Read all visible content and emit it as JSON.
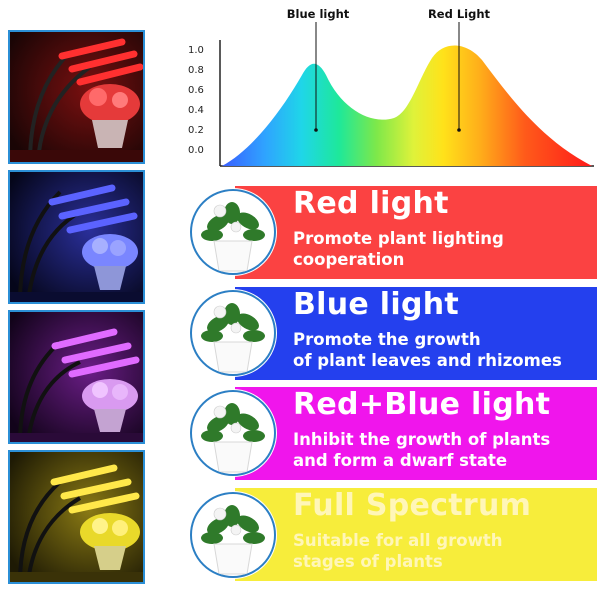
{
  "chart": {
    "y_ticks": [
      "1.0",
      "0.8",
      "0.6",
      "0.4",
      "0.2",
      "0.0"
    ],
    "peak_labels": {
      "blue": "Blue light",
      "red": "Red Light"
    }
  },
  "panels": [
    {
      "title": "Red light",
      "desc_line1": "Promote plant lighting",
      "desc_line2": "cooperation",
      "color": "#fb4242"
    },
    {
      "title": "Blue light",
      "desc_line1": "Promote the growth",
      "desc_line2": "of plant leaves and rhizomes",
      "color": "#2440ee"
    },
    {
      "title": "Red+Blue light",
      "desc_line1": "Inhibit the growth of plants",
      "desc_line2": "and form a dwarf state",
      "color": "#f015ec"
    },
    {
      "title": "Full Spectrum",
      "desc_line1": "Suitable for all growth",
      "desc_line2": "stages of plants",
      "color": "#f7ed3b"
    }
  ],
  "thumbnails": [
    {
      "light": "red",
      "tint": "#ff2a2a"
    },
    {
      "light": "blue",
      "tint": "#4a52ff"
    },
    {
      "light": "purple",
      "tint": "#d35cff"
    },
    {
      "light": "yellow",
      "tint": "#ffe23a"
    }
  ]
}
